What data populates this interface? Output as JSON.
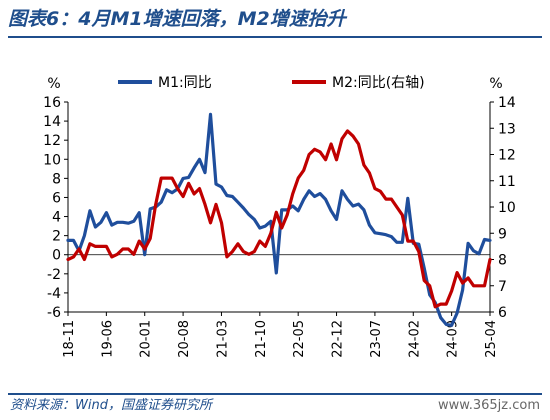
{
  "header": {
    "title": "图表6：4月M1增速回落，M2增速抬升"
  },
  "footer": {
    "source": "资料来源：Wind，国盛证券研究所",
    "watermark": "www.365jz.com"
  },
  "chart_data": {
    "type": "line",
    "left_axis_unit": "%",
    "right_axis_unit": "%",
    "ylim_left": [
      -6,
      16
    ],
    "yticks_left": [
      -6,
      -4,
      -2,
      0,
      2,
      4,
      6,
      8,
      10,
      12,
      14,
      16
    ],
    "ylim_right": [
      6,
      14
    ],
    "yticks_right": [
      6,
      7,
      8,
      9,
      10,
      11,
      12,
      13,
      14
    ],
    "x_tick_labels": [
      "18-11",
      "19-06",
      "20-01",
      "20-08",
      "21-03",
      "21-10",
      "22-05",
      "22-12",
      "23-07",
      "24-02",
      "24-09",
      "25-04"
    ],
    "legend_position": "top",
    "grid": false,
    "series": [
      {
        "name": "M1:同比",
        "axis": "left",
        "color": "#1f4e9c",
        "points": [
          [
            "2018-11",
            1.5
          ],
          [
            "2018-12",
            1.5
          ],
          [
            "2019-01",
            0.4
          ],
          [
            "2019-02",
            2.0
          ],
          [
            "2019-03",
            4.6
          ],
          [
            "2019-04",
            2.9
          ],
          [
            "2019-05",
            3.4
          ],
          [
            "2019-06",
            4.4
          ],
          [
            "2019-07",
            3.1
          ],
          [
            "2019-08",
            3.4
          ],
          [
            "2019-09",
            3.4
          ],
          [
            "2019-10",
            3.3
          ],
          [
            "2019-11",
            3.5
          ],
          [
            "2019-12",
            4.4
          ],
          [
            "2020-01",
            0.0
          ],
          [
            "2020-02",
            4.8
          ],
          [
            "2020-03",
            5.0
          ],
          [
            "2020-04",
            5.5
          ],
          [
            "2020-05",
            6.8
          ],
          [
            "2020-06",
            6.5
          ],
          [
            "2020-07",
            6.9
          ],
          [
            "2020-08",
            8.0
          ],
          [
            "2020-09",
            8.1
          ],
          [
            "2020-10",
            9.1
          ],
          [
            "2020-11",
            10.0
          ],
          [
            "2020-12",
            8.6
          ],
          [
            "2021-01",
            14.7
          ],
          [
            "2021-02",
            7.4
          ],
          [
            "2021-03",
            7.1
          ],
          [
            "2021-04",
            6.2
          ],
          [
            "2021-05",
            6.1
          ],
          [
            "2021-06",
            5.5
          ],
          [
            "2021-07",
            4.9
          ],
          [
            "2021-08",
            4.2
          ],
          [
            "2021-09",
            3.7
          ],
          [
            "2021-10",
            2.8
          ],
          [
            "2021-11",
            3.0
          ],
          [
            "2021-12",
            3.5
          ],
          [
            "2022-01",
            -1.9
          ],
          [
            "2022-02",
            4.7
          ],
          [
            "2022-03",
            4.7
          ],
          [
            "2022-04",
            5.1
          ],
          [
            "2022-05",
            4.6
          ],
          [
            "2022-06",
            5.8
          ],
          [
            "2022-07",
            6.7
          ],
          [
            "2022-08",
            6.1
          ],
          [
            "2022-09",
            6.4
          ],
          [
            "2022-10",
            5.8
          ],
          [
            "2022-11",
            4.6
          ],
          [
            "2022-12",
            3.7
          ],
          [
            "2023-01",
            6.7
          ],
          [
            "2023-02",
            5.8
          ],
          [
            "2023-03",
            5.1
          ],
          [
            "2023-04",
            5.3
          ],
          [
            "2023-05",
            4.7
          ],
          [
            "2023-06",
            3.1
          ],
          [
            "2023-07",
            2.3
          ],
          [
            "2023-08",
            2.2
          ],
          [
            "2023-09",
            2.1
          ],
          [
            "2023-10",
            1.9
          ],
          [
            "2023-11",
            1.3
          ],
          [
            "2023-12",
            1.3
          ],
          [
            "2024-01",
            5.9
          ],
          [
            "2024-02",
            1.2
          ],
          [
            "2024-03",
            1.1
          ],
          [
            "2024-04",
            -1.4
          ],
          [
            "2024-05",
            -4.2
          ],
          [
            "2024-06",
            -5.0
          ],
          [
            "2024-07",
            -6.6
          ],
          [
            "2024-08",
            -7.3
          ],
          [
            "2024-09",
            -7.4
          ],
          [
            "2024-10",
            -6.1
          ],
          [
            "2024-11",
            -3.7
          ],
          [
            "2024-12",
            1.2
          ],
          [
            "2025-01",
            0.4
          ],
          [
            "2025-02",
            0.1
          ],
          [
            "2025-03",
            1.6
          ],
          [
            "2025-04",
            1.5
          ]
        ]
      },
      {
        "name": "M2:同比(右轴)",
        "axis": "right",
        "color": "#c00000",
        "points": [
          [
            "2018-11",
            8.0
          ],
          [
            "2018-12",
            8.1
          ],
          [
            "2019-01",
            8.4
          ],
          [
            "2019-02",
            8.0
          ],
          [
            "2019-03",
            8.6
          ],
          [
            "2019-04",
            8.5
          ],
          [
            "2019-05",
            8.5
          ],
          [
            "2019-06",
            8.5
          ],
          [
            "2019-07",
            8.1
          ],
          [
            "2019-08",
            8.2
          ],
          [
            "2019-09",
            8.4
          ],
          [
            "2019-10",
            8.4
          ],
          [
            "2019-11",
            8.2
          ],
          [
            "2019-12",
            8.7
          ],
          [
            "2020-01",
            8.4
          ],
          [
            "2020-02",
            8.8
          ],
          [
            "2020-03",
            10.1
          ],
          [
            "2020-04",
            11.1
          ],
          [
            "2020-05",
            11.1
          ],
          [
            "2020-06",
            11.1
          ],
          [
            "2020-07",
            10.7
          ],
          [
            "2020-08",
            10.4
          ],
          [
            "2020-09",
            10.9
          ],
          [
            "2020-10",
            10.5
          ],
          [
            "2020-11",
            10.7
          ],
          [
            "2020-12",
            10.1
          ],
          [
            "2021-01",
            9.4
          ],
          [
            "2021-02",
            10.1
          ],
          [
            "2021-03",
            9.4
          ],
          [
            "2021-04",
            8.1
          ],
          [
            "2021-05",
            8.3
          ],
          [
            "2021-06",
            8.6
          ],
          [
            "2021-07",
            8.3
          ],
          [
            "2021-08",
            8.2
          ],
          [
            "2021-09",
            8.3
          ],
          [
            "2021-10",
            8.7
          ],
          [
            "2021-11",
            8.5
          ],
          [
            "2021-12",
            9.0
          ],
          [
            "2022-01",
            9.8
          ],
          [
            "2022-02",
            9.2
          ],
          [
            "2022-03",
            9.7
          ],
          [
            "2022-04",
            10.5
          ],
          [
            "2022-05",
            11.1
          ],
          [
            "2022-06",
            11.4
          ],
          [
            "2022-07",
            12.0
          ],
          [
            "2022-08",
            12.2
          ],
          [
            "2022-09",
            12.1
          ],
          [
            "2022-10",
            11.8
          ],
          [
            "2022-11",
            12.4
          ],
          [
            "2022-12",
            11.8
          ],
          [
            "2023-01",
            12.6
          ],
          [
            "2023-02",
            12.9
          ],
          [
            "2023-03",
            12.7
          ],
          [
            "2023-04",
            12.4
          ],
          [
            "2023-05",
            11.6
          ],
          [
            "2023-06",
            11.3
          ],
          [
            "2023-07",
            10.7
          ],
          [
            "2023-08",
            10.6
          ],
          [
            "2023-09",
            10.3
          ],
          [
            "2023-10",
            10.3
          ],
          [
            "2023-11",
            10.0
          ],
          [
            "2023-12",
            9.7
          ],
          [
            "2024-01",
            8.7
          ],
          [
            "2024-02",
            8.7
          ],
          [
            "2024-03",
            8.3
          ],
          [
            "2024-04",
            7.2
          ],
          [
            "2024-05",
            7.0
          ],
          [
            "2024-06",
            6.2
          ],
          [
            "2024-07",
            6.3
          ],
          [
            "2024-08",
            6.3
          ],
          [
            "2024-09",
            6.8
          ],
          [
            "2024-10",
            7.5
          ],
          [
            "2024-11",
            7.1
          ],
          [
            "2024-12",
            7.3
          ],
          [
            "2025-01",
            7.0
          ],
          [
            "2025-02",
            7.0
          ],
          [
            "2025-03",
            7.0
          ],
          [
            "2025-04",
            8.0
          ]
        ]
      }
    ]
  }
}
